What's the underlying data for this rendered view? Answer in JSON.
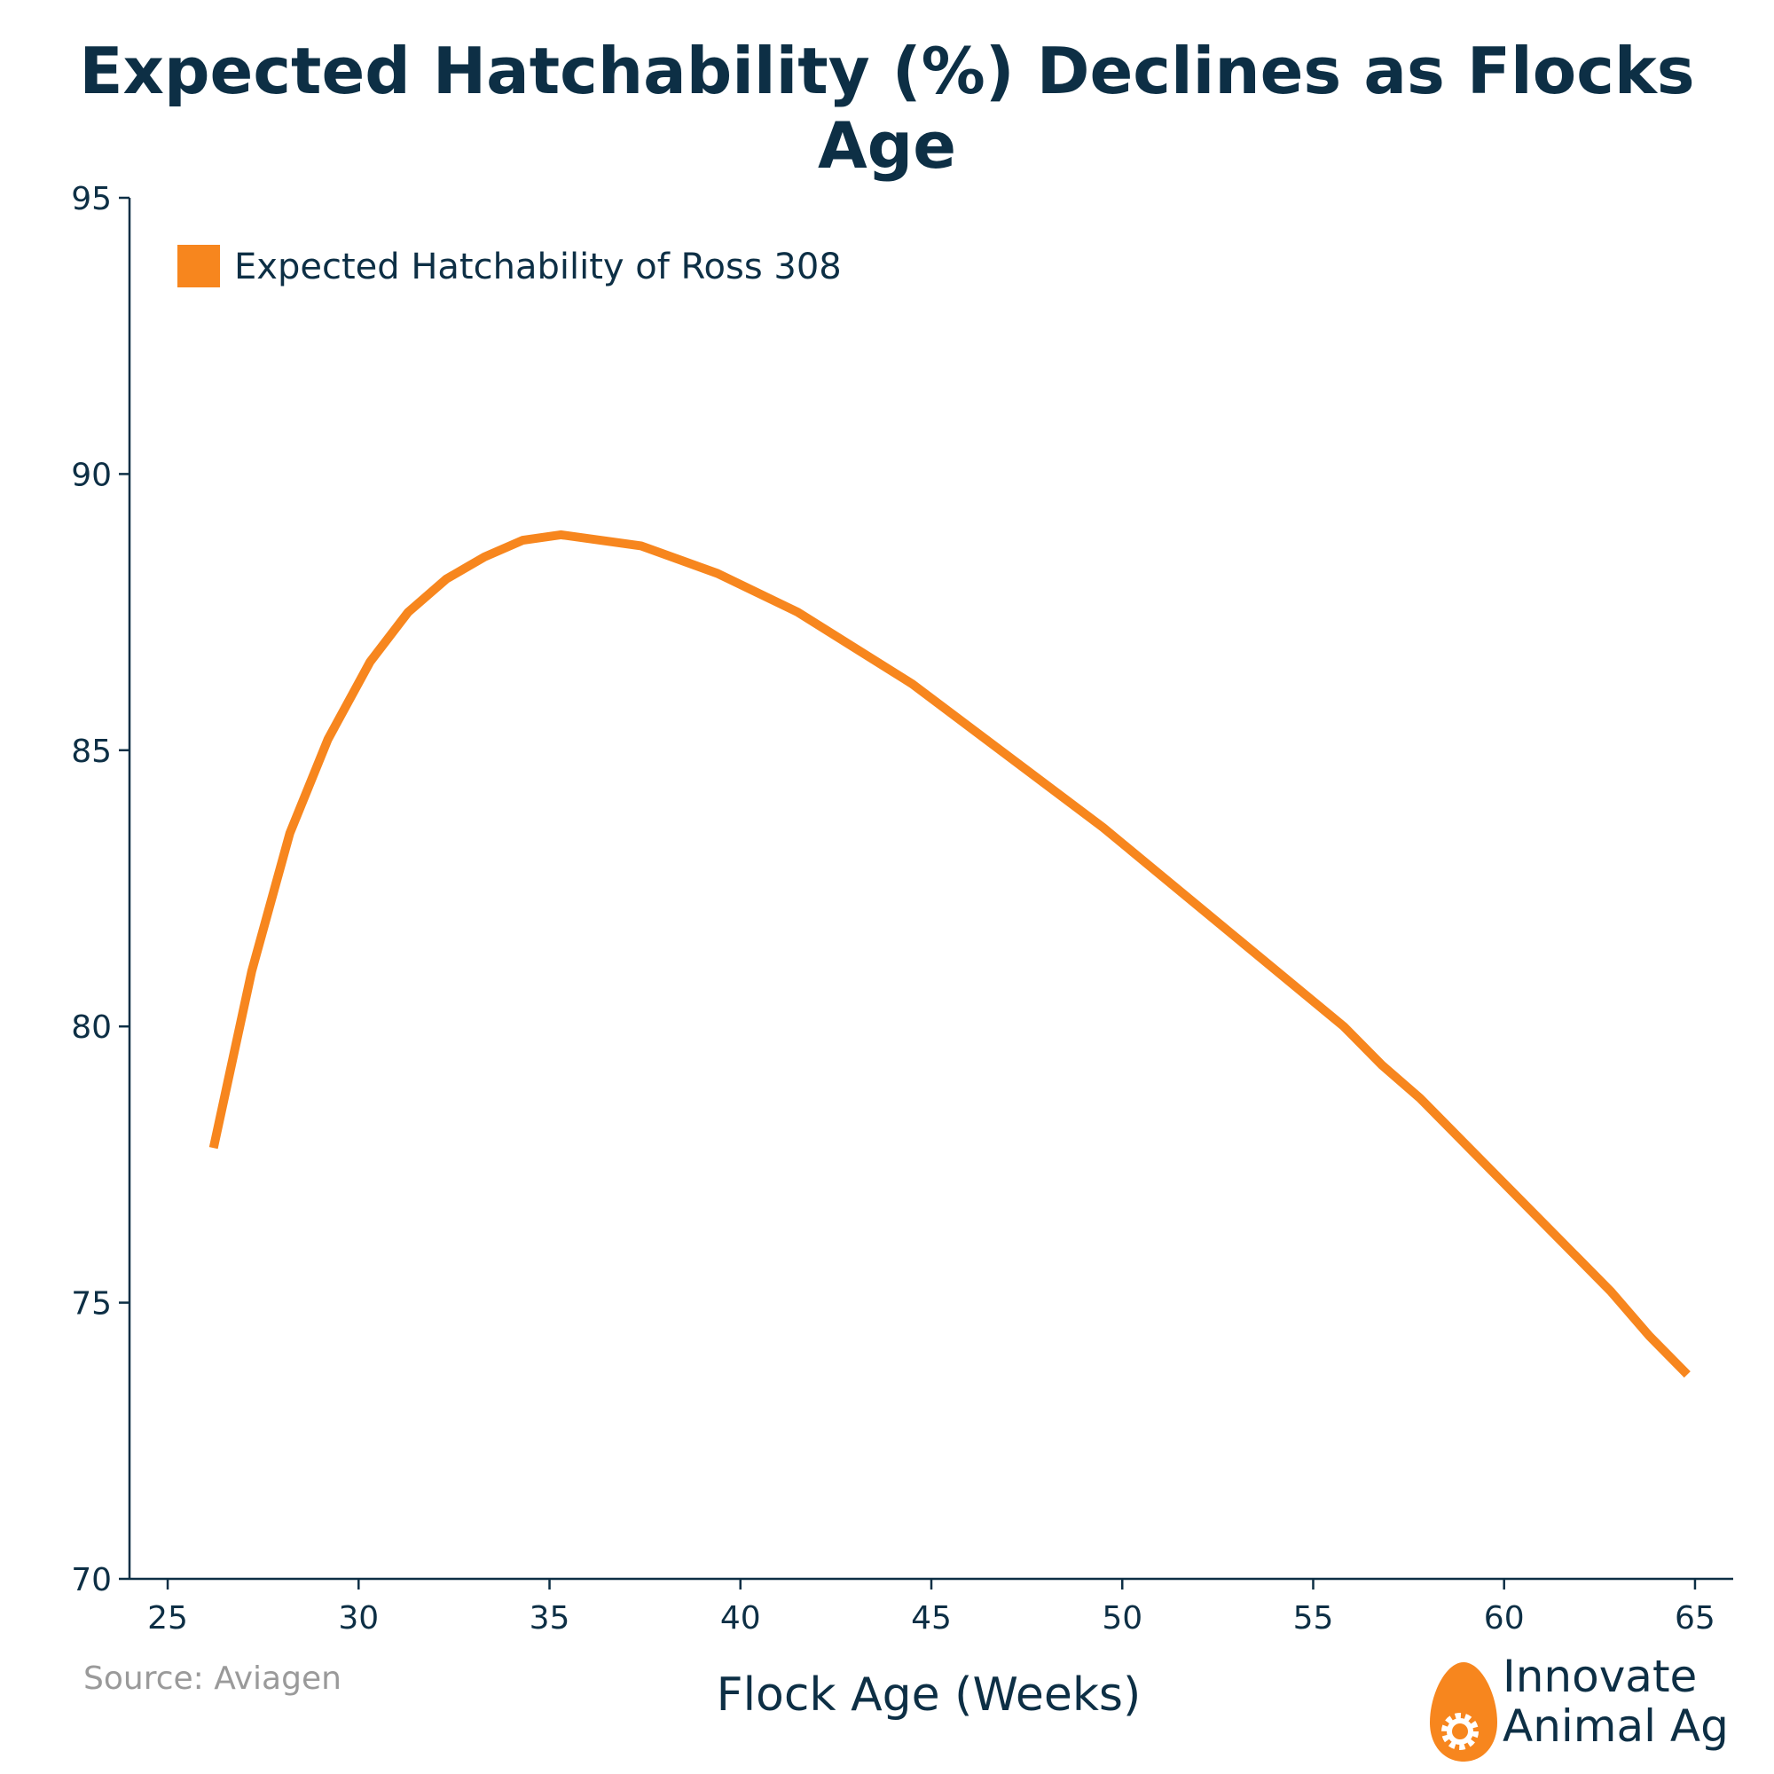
{
  "title": "Expected Hatchability (%) Declines as Flocks Age",
  "source": "Source: Aviagen",
  "brand": {
    "line1": "Innovate",
    "line2": "Animal Ag",
    "accent_color": "#f7861e"
  },
  "colors": {
    "text": "#0d2f45",
    "line": "#f7861e",
    "source": "#9a9a9a"
  },
  "chart_data": {
    "type": "line",
    "title": "Expected Hatchability (%) Declines as Flocks Age",
    "xlabel": "Flock Age (Weeks)",
    "ylabel": "",
    "xlim": [
      24,
      66
    ],
    "ylim": [
      70,
      95
    ],
    "xticks": [
      25,
      30,
      35,
      40,
      45,
      50,
      55,
      60,
      65
    ],
    "yticks": [
      70,
      75,
      80,
      85,
      90,
      95
    ],
    "grid": false,
    "legend_position": "top-left",
    "series": [
      {
        "name": "Expected Hatchability of Ross 308",
        "color": "#f7861e",
        "x": [
          26.2,
          27.2,
          28.2,
          29.2,
          30.3,
          31.3,
          32.3,
          33.3,
          34.3,
          35.3,
          37.4,
          39.4,
          41.5,
          44.5,
          49.5,
          55.8,
          56.8,
          57.8,
          62.8,
          63.8,
          64.8
        ],
        "y": [
          77.8,
          81.0,
          83.5,
          85.2,
          86.6,
          87.5,
          88.1,
          88.5,
          88.8,
          88.9,
          88.7,
          88.2,
          87.5,
          86.2,
          83.6,
          80.0,
          79.3,
          78.7,
          75.2,
          74.4,
          73.7
        ]
      }
    ]
  }
}
